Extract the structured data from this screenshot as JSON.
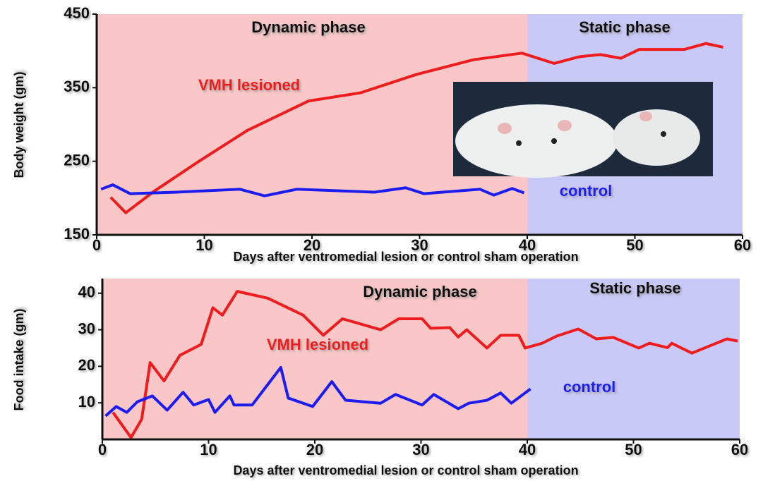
{
  "chart_data": [
    {
      "type": "line",
      "ylabel": "Body weight (gm)",
      "xlabel": "Days after ventromedial lesion or control sham operation",
      "xlim": [
        0,
        60
      ],
      "xticks": [
        0,
        10,
        20,
        30,
        40,
        50,
        60
      ],
      "ylim": [
        150,
        450
      ],
      "yticks": [
        150,
        250,
        350,
        450
      ],
      "phases": [
        {
          "label": "Dynamic phase",
          "range": [
            0,
            40
          ],
          "color": "#f9c7c7"
        },
        {
          "label": "Static phase",
          "range": [
            40,
            60
          ],
          "color": "#c9c9f7"
        }
      ],
      "series": [
        {
          "name": "VMH lesioned",
          "color": "#ee1c1c",
          "x": [
            1.3,
            2.7,
            5.4,
            9.4,
            14,
            19.7,
            24.5,
            29.7,
            35,
            39.5,
            42.5,
            44.8,
            46.8,
            48.7,
            50.4,
            54.6,
            56.6,
            58.2
          ],
          "values": [
            201,
            180,
            210,
            249,
            292,
            332,
            343,
            368,
            388,
            397,
            383,
            392,
            395,
            390,
            402,
            402,
            410,
            405
          ]
        },
        {
          "name": "control",
          "color": "#1c1cee",
          "x": [
            0.4,
            1.5,
            3.1,
            7.4,
            13.3,
            15.6,
            18.6,
            25.8,
            28.7,
            30.4,
            35.6,
            36.9,
            38.6,
            39.7
          ],
          "values": [
            212,
            218,
            206,
            208,
            212,
            203,
            212,
            208,
            214,
            206,
            212,
            204,
            213,
            207
          ]
        }
      ]
    },
    {
      "type": "line",
      "ylabel": "Food intake (gm)",
      "xlabel": "Days after ventromedial lesion or control sham operation",
      "xlim": [
        0,
        60
      ],
      "xticks": [
        0,
        10,
        20,
        30,
        40,
        50,
        60
      ],
      "ylim": [
        0,
        44
      ],
      "yticks": [
        10,
        20,
        30,
        40
      ],
      "phases": [
        {
          "label": "Dynamic phase",
          "range": [
            0,
            40
          ],
          "color": "#f9c7c7"
        },
        {
          "label": "Static phase",
          "range": [
            40,
            60
          ],
          "color": "#c9c9f7"
        }
      ],
      "series": [
        {
          "name": "VMH lesioned",
          "color": "#ee1c1c",
          "x": [
            1,
            2.7,
            3.7,
            4.5,
            5.8,
            7.3,
            9.3,
            10.4,
            11.3,
            12.7,
            15.6,
            18.9,
            20.8,
            22.6,
            26.2,
            27.9,
            30.1,
            30.9,
            32.7,
            33.5,
            34.3,
            36.2,
            37.5,
            39.2,
            39.8,
            41.4,
            42.8,
            44.8,
            46.5,
            48.1,
            50.5,
            51.5,
            53.2,
            53.6,
            55.5,
            58.8,
            59.8
          ],
          "values": [
            7.4,
            0.5,
            5.5,
            21,
            16,
            23,
            26,
            36,
            34,
            40.5,
            38.6,
            34,
            28.5,
            33,
            30,
            33,
            33,
            30.4,
            30.6,
            28,
            30,
            25,
            28.5,
            28.5,
            25,
            26.3,
            28.3,
            30.2,
            27.5,
            27.9,
            25,
            26.3,
            25.1,
            26.3,
            23.6,
            27.5,
            26.9
          ]
        },
        {
          "name": "control",
          "color": "#1c1cee",
          "x": [
            0.3,
            1.3,
            2.3,
            3.3,
            4.7,
            6.1,
            7.6,
            8.6,
            10,
            10.6,
            12,
            12.4,
            14.1,
            16.8,
            17.5,
            19.8,
            21.6,
            22.9,
            26.2,
            27.6,
            30.1,
            31.2,
            33.5,
            34.5,
            36.2,
            37.5,
            38.5,
            40.3
          ],
          "values": [
            6.4,
            9,
            7.4,
            10.3,
            11.9,
            8,
            12.9,
            9.4,
            10.9,
            7.4,
            11.9,
            9.4,
            9.4,
            19.7,
            11.3,
            9,
            15.8,
            10.7,
            9.9,
            12.3,
            9.4,
            12.3,
            8.4,
            9.9,
            10.7,
            12.7,
            9.9,
            13.8
          ]
        }
      ]
    }
  ]
}
